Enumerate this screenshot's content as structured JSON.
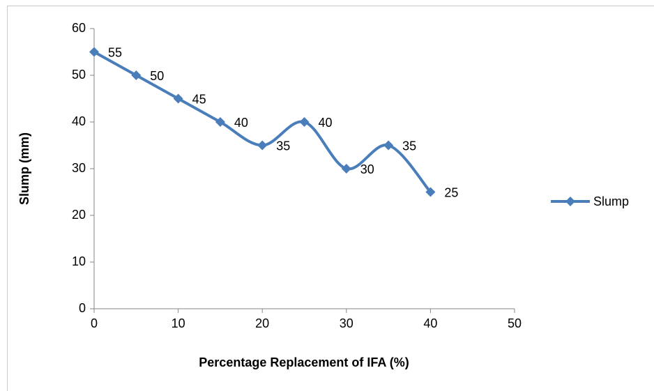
{
  "chart_data": {
    "type": "line",
    "x_label": "Percentage Replacement of IFA (%)",
    "y_label": "Slump (mm)",
    "x": [
      0,
      5,
      10,
      15,
      20,
      25,
      30,
      35,
      40
    ],
    "series": [
      {
        "name": "Slump",
        "color": "#4a7ebb",
        "values": [
          55,
          50,
          45,
          40,
          35,
          40,
          30,
          35,
          25
        ]
      }
    ],
    "xlim": [
      0,
      50
    ],
    "xticks": [
      0,
      10,
      20,
      30,
      40,
      50
    ],
    "ylim": [
      0,
      60
    ],
    "yticks": [
      0,
      10,
      20,
      30,
      40,
      50,
      60
    ],
    "grid": false,
    "smooth": true,
    "marker": "diamond",
    "legend": "right",
    "data_labels": true
  }
}
